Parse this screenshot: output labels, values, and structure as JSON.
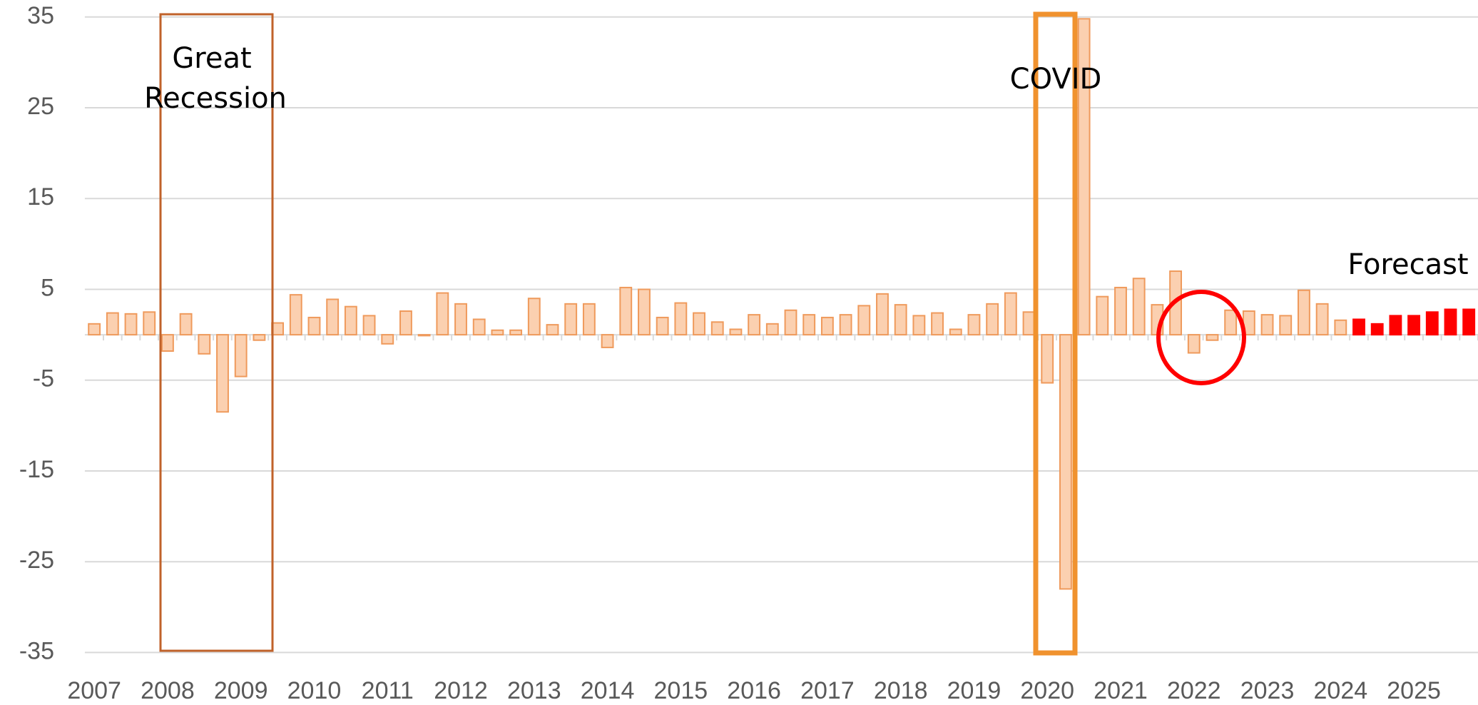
{
  "chart_data": {
    "type": "bar",
    "categories": [
      "2007",
      null,
      null,
      null,
      "2008",
      null,
      null,
      null,
      "2009",
      null,
      null,
      null,
      "2010",
      null,
      null,
      null,
      "2011",
      null,
      null,
      null,
      "2012",
      null,
      null,
      null,
      "2013",
      null,
      null,
      null,
      "2014",
      null,
      null,
      null,
      "2015",
      null,
      null,
      null,
      "2016",
      null,
      null,
      null,
      "2017",
      null,
      null,
      null,
      "2018",
      null,
      null,
      null,
      "2019",
      null,
      null,
      null,
      "2020",
      null,
      null,
      null,
      "2021",
      null,
      null,
      null,
      "2022",
      null,
      null,
      null,
      "2023",
      null,
      null,
      null,
      "2024",
      null,
      null,
      null,
      "2025",
      null,
      null,
      null
    ],
    "values": [
      1.2,
      2.4,
      2.3,
      2.5,
      -1.8,
      2.3,
      -2.1,
      -8.5,
      -4.6,
      -0.6,
      1.3,
      4.4,
      1.9,
      3.9,
      3.1,
      2.1,
      -1.0,
      2.6,
      -0.1,
      4.6,
      3.4,
      1.7,
      0.5,
      0.5,
      4.0,
      1.1,
      3.4,
      3.4,
      -1.4,
      5.2,
      5.0,
      1.9,
      3.5,
      2.4,
      1.4,
      0.6,
      2.2,
      1.2,
      2.7,
      2.2,
      1.9,
      2.2,
      3.2,
      4.5,
      3.3,
      2.1,
      2.4,
      0.6,
      2.2,
      3.4,
      4.6,
      2.5,
      -5.3,
      -28.0,
      34.8,
      4.2,
      5.2,
      6.2,
      3.3,
      7.0,
      -2.0,
      -0.6,
      2.7,
      2.6,
      2.2,
      2.1,
      4.9,
      3.4,
      1.6,
      1.7,
      1.2,
      2.1,
      2.1,
      2.5,
      2.8,
      2.8
    ],
    "colors": [
      "#fbd0b0",
      "#fbd0b0",
      "#fbd0b0",
      "#fbd0b0",
      "#fbd0b0",
      "#fbd0b0",
      "#fbd0b0",
      "#fbd0b0",
      "#fbd0b0",
      "#fbd0b0",
      "#fbd0b0",
      "#fbd0b0",
      "#fbd0b0",
      "#fbd0b0",
      "#fbd0b0",
      "#fbd0b0",
      "#fbd0b0",
      "#fbd0b0",
      "#fbd0b0",
      "#fbd0b0",
      "#fbd0b0",
      "#fbd0b0",
      "#fbd0b0",
      "#fbd0b0",
      "#fbd0b0",
      "#fbd0b0",
      "#fbd0b0",
      "#fbd0b0",
      "#fbd0b0",
      "#fbd0b0",
      "#fbd0b0",
      "#fbd0b0",
      "#fbd0b0",
      "#fbd0b0",
      "#fbd0b0",
      "#fbd0b0",
      "#fbd0b0",
      "#fbd0b0",
      "#fbd0b0",
      "#fbd0b0",
      "#fbd0b0",
      "#fbd0b0",
      "#fbd0b0",
      "#fbd0b0",
      "#fbd0b0",
      "#fbd0b0",
      "#fbd0b0",
      "#fbd0b0",
      "#fbd0b0",
      "#fbd0b0",
      "#fbd0b0",
      "#fbd0b0",
      "#fbd0b0",
      "#fbd0b0",
      "#fbd0b0",
      "#fbd0b0",
      "#fbd0b0",
      "#fbd0b0",
      "#fbd0b0",
      "#fbd0b0",
      "#fbd0b0",
      "#fbd0b0",
      "#fbd0b0",
      "#fbd0b0",
      "#fbd0b0",
      "#fbd0b0",
      "#fbd0b0",
      "#fbd0b0",
      "#fbd0b0",
      "#ff0000",
      "#ff0000",
      "#ff0000",
      "#ff0000",
      "#ff0000",
      "#ff0000",
      "#ff0000"
    ],
    "ylim": [
      -35,
      35
    ],
    "yticks": [
      35,
      25,
      15,
      5,
      -5,
      -15,
      -25,
      -35
    ],
    "grid": true,
    "annotations": [
      "Great Recession",
      "COVID",
      "Forecast"
    ]
  }
}
